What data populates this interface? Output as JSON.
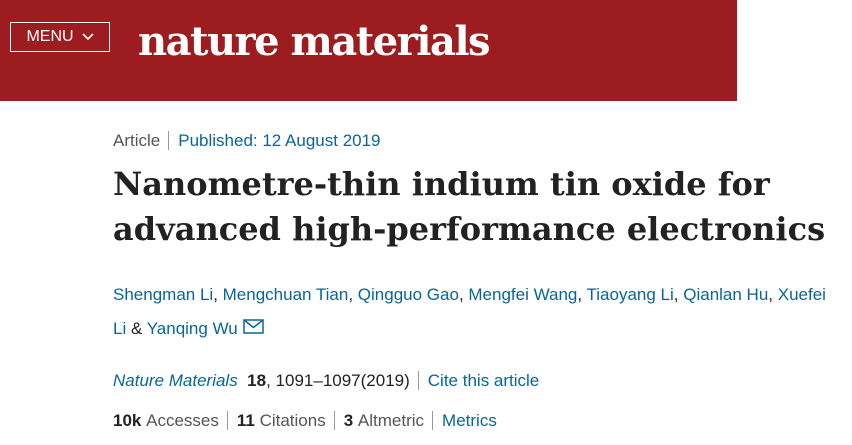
{
  "header": {
    "menu": "MENU",
    "logo": "nature materials"
  },
  "article": {
    "type": "Article",
    "published": "Published: 12 August 2019",
    "title": "Nanometre-thin indium tin oxide for advanced high-performance electronics",
    "authors": [
      {
        "name": "Shengman Li",
        "sep": ", "
      },
      {
        "name": "Mengchuan Tian",
        "sep": ", "
      },
      {
        "name": "Qingguo Gao",
        "sep": ", "
      },
      {
        "name": "Mengfei Wang",
        "sep": ", "
      },
      {
        "name": "Tiaoyang Li",
        "sep": ", "
      },
      {
        "name": "Qianlan Hu",
        "sep": ", "
      },
      {
        "name": "Xuefei Li",
        "sep": " & "
      },
      {
        "name": "Yanqing Wu"
      }
    ],
    "journal": "Nature Materials",
    "volume": 18,
    "pages": "1091–1097",
    "year": "(2019)",
    "cite": "Cite this article"
  },
  "metrics": {
    "items": [
      {
        "value": "10k",
        "label": "Accesses"
      },
      {
        "value": 11,
        "label": "Citations"
      },
      {
        "value": 3,
        "label": "Altmetric"
      }
    ],
    "link": "Metrics"
  }
}
